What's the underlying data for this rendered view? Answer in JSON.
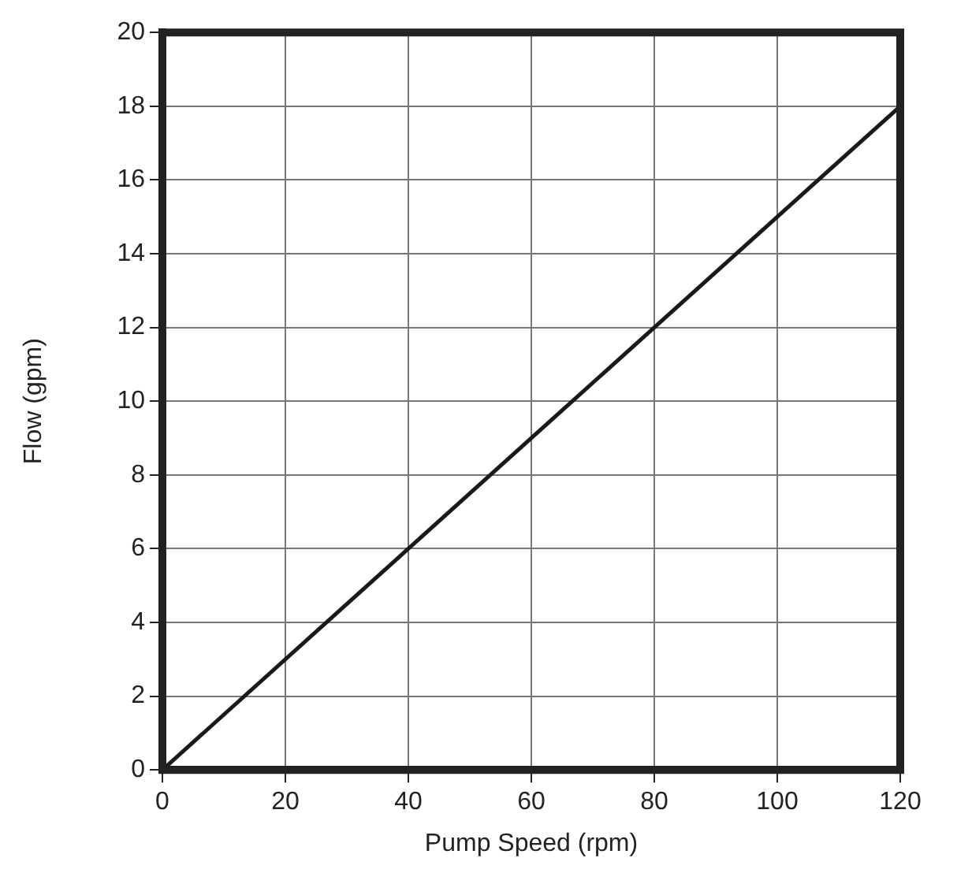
{
  "chart_data": {
    "type": "line",
    "xlabel": "Pump Speed (rpm)",
    "ylabel": "Flow (gpm)",
    "x": [
      0,
      120
    ],
    "series": [
      {
        "color": "#1a1a1a",
        "values": [
          0,
          18
        ]
      }
    ],
    "xlim": [
      0,
      120
    ],
    "xticks": [
      0,
      20,
      40,
      60,
      80,
      100,
      120
    ],
    "ylim": [
      0,
      20
    ],
    "yticks": [
      0,
      2,
      4,
      6,
      8,
      10,
      12,
      14,
      16,
      18,
      20
    ],
    "grid": true,
    "legend": false,
    "marker": "none",
    "line_style": "solid"
  }
}
